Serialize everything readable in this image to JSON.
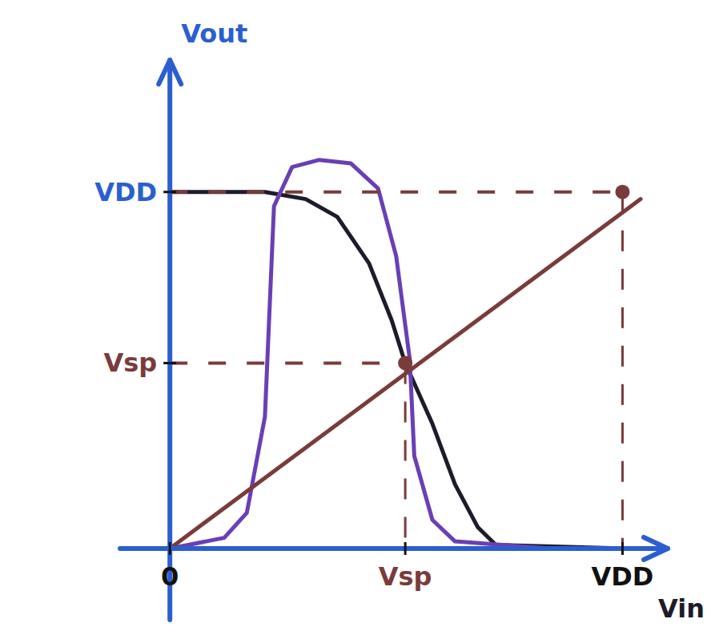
{
  "chart_data": {
    "type": "line",
    "xlabel": "Vin",
    "ylabel": "Vout",
    "xlim": [
      -0.11,
      1.1
    ],
    "ylim": [
      -0.2,
      1.37
    ],
    "xticks": [
      0,
      {
        "value": 0.52,
        "label": "Vsp"
      },
      {
        "value": 1,
        "label": "VDD"
      }
    ],
    "yticks": [
      {
        "value": 0.52,
        "label": "Vsp"
      },
      {
        "value": 1,
        "label": "VDD"
      }
    ],
    "grid": false,
    "series": [
      {
        "color": "#1c1c2a",
        "x": [
          0,
          0.21,
          0.3,
          0.37,
          0.44,
          0.49,
          0.52,
          0.58,
          0.63,
          0.68,
          0.72,
          1.0
        ],
        "values": [
          1.0,
          1.0,
          0.98,
          0.93,
          0.8,
          0.64,
          0.52,
          0.35,
          0.18,
          0.06,
          0.01,
          0.0
        ]
      },
      {
        "color": "#6a3fb5",
        "x": [
          0,
          0.12,
          0.17,
          0.21,
          0.23,
          0.27,
          0.33,
          0.4,
          0.46,
          0.5,
          0.53,
          0.54,
          0.58,
          0.63,
          0.84
        ],
        "values": [
          0,
          0.03,
          0.1,
          0.37,
          0.96,
          1.07,
          1.09,
          1.08,
          1.01,
          0.82,
          0.53,
          0.26,
          0.08,
          0.02,
          0
        ]
      },
      {
        "color": "#7a3b3b",
        "x": [
          0,
          1.04
        ],
        "values": [
          0,
          0.98
        ]
      }
    ]
  }
}
